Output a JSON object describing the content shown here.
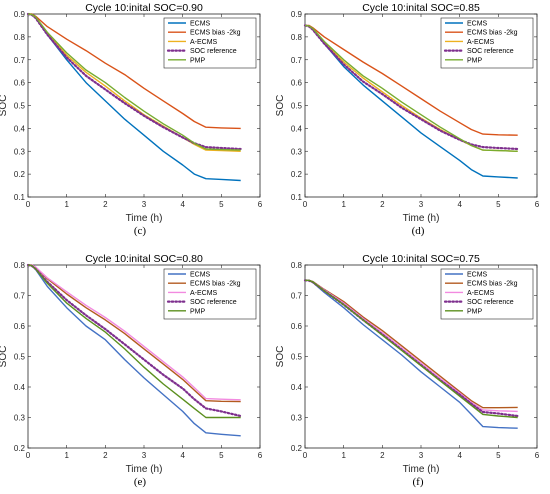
{
  "chart_data": [
    {
      "type": "line",
      "title": "Cycle 10:inital SOC=0.90",
      "xlabel": "Time (h)",
      "ylabel": "SOC",
      "panel_label": "(c)",
      "xlim": [
        0,
        6
      ],
      "ylim": [
        0.1,
        0.9
      ],
      "xticks": [
        0,
        1,
        2,
        3,
        4,
        5,
        6
      ],
      "yticks": [
        0.1,
        0.2,
        0.3,
        0.4,
        0.5,
        0.6,
        0.7,
        0.8,
        0.9
      ],
      "grid": false,
      "legend_position": "top-right",
      "series": [
        {
          "name": "ECMS",
          "color": "#0072BD",
          "dash": "solid",
          "x": [
            0,
            0.1,
            0.2,
            0.5,
            1,
            1.5,
            2,
            2.5,
            3,
            3.5,
            4,
            4.3,
            4.6,
            5,
            5.5
          ],
          "y": [
            0.9,
            0.898,
            0.885,
            0.81,
            0.7,
            0.6,
            0.52,
            0.44,
            0.37,
            0.3,
            0.24,
            0.2,
            0.18,
            0.177,
            0.172
          ]
        },
        {
          "name": "ECMS bias -2kg",
          "color": "#D95319",
          "dash": "solid",
          "x": [
            0,
            0.1,
            0.2,
            0.5,
            1,
            1.5,
            2,
            2.5,
            3,
            3.5,
            4,
            4.3,
            4.6,
            5,
            5.5
          ],
          "y": [
            0.9,
            0.9,
            0.89,
            0.845,
            0.79,
            0.74,
            0.685,
            0.635,
            0.575,
            0.52,
            0.465,
            0.43,
            0.405,
            0.402,
            0.4
          ]
        },
        {
          "name": "A-ECMS",
          "color": "#EDB120",
          "dash": "solid",
          "x": [
            0,
            0.1,
            0.2,
            0.5,
            1,
            1.5,
            2,
            2.5,
            3,
            3.5,
            4,
            4.3,
            4.6,
            5,
            5.5
          ],
          "y": [
            0.9,
            0.898,
            0.885,
            0.815,
            0.72,
            0.645,
            0.585,
            0.52,
            0.46,
            0.41,
            0.36,
            0.33,
            0.305,
            0.303,
            0.3
          ]
        },
        {
          "name": "SOC reference",
          "color": "#7E2F8E",
          "dash": "dotted",
          "x": [
            0,
            0.1,
            0.2,
            0.5,
            1,
            1.5,
            2,
            2.5,
            3,
            3.5,
            4,
            4.3,
            4.6,
            5,
            5.5
          ],
          "y": [
            0.9,
            0.896,
            0.882,
            0.81,
            0.71,
            0.63,
            0.57,
            0.51,
            0.455,
            0.405,
            0.36,
            0.335,
            0.318,
            0.314,
            0.31
          ]
        },
        {
          "name": "PMP",
          "color": "#77AC30",
          "dash": "solid",
          "x": [
            0,
            0.1,
            0.2,
            0.5,
            1,
            1.5,
            2,
            2.5,
            3,
            3.5,
            4,
            4.3,
            4.6,
            5,
            5.5
          ],
          "y": [
            0.9,
            0.898,
            0.887,
            0.82,
            0.73,
            0.655,
            0.6,
            0.535,
            0.475,
            0.42,
            0.37,
            0.335,
            0.31,
            0.307,
            0.305
          ]
        }
      ]
    },
    {
      "type": "line",
      "title": "Cycle 10:inital SOC=0.85",
      "xlabel": "Time (h)",
      "ylabel": "SOC",
      "panel_label": "(d)",
      "xlim": [
        0,
        6
      ],
      "ylim": [
        0.1,
        0.9
      ],
      "xticks": [
        0,
        1,
        2,
        3,
        4,
        5,
        6
      ],
      "yticks": [
        0.1,
        0.2,
        0.3,
        0.4,
        0.5,
        0.6,
        0.7,
        0.8,
        0.9
      ],
      "grid": false,
      "legend_position": "top-right",
      "series": [
        {
          "name": "ECMS",
          "color": "#0072BD",
          "dash": "solid",
          "x": [
            0,
            0.1,
            0.2,
            0.5,
            1,
            1.5,
            2,
            2.5,
            3,
            3.5,
            4,
            4.3,
            4.6,
            5,
            5.5
          ],
          "y": [
            0.85,
            0.848,
            0.835,
            0.77,
            0.67,
            0.59,
            0.52,
            0.45,
            0.38,
            0.32,
            0.26,
            0.22,
            0.192,
            0.188,
            0.183
          ]
        },
        {
          "name": "ECMS bias -2kg",
          "color": "#D95319",
          "dash": "solid",
          "x": [
            0,
            0.1,
            0.2,
            0.5,
            1,
            1.5,
            2,
            2.5,
            3,
            3.5,
            4,
            4.3,
            4.6,
            5,
            5.5
          ],
          "y": [
            0.85,
            0.85,
            0.84,
            0.8,
            0.745,
            0.69,
            0.64,
            0.585,
            0.53,
            0.475,
            0.425,
            0.395,
            0.375,
            0.372,
            0.37
          ]
        },
        {
          "name": "A-ECMS",
          "color": "#EDB120",
          "dash": "solid",
          "x": [
            0,
            0.1,
            0.2,
            0.5,
            1,
            1.5,
            2,
            2.5,
            3,
            3.5,
            4,
            4.3,
            4.6,
            5,
            5.5
          ],
          "y": [
            0.85,
            0.848,
            0.835,
            0.775,
            0.69,
            0.62,
            0.56,
            0.5,
            0.445,
            0.395,
            0.35,
            0.325,
            0.305,
            0.303,
            0.3
          ]
        },
        {
          "name": "SOC reference",
          "color": "#7E2F8E",
          "dash": "dotted",
          "x": [
            0,
            0.1,
            0.2,
            0.5,
            1,
            1.5,
            2,
            2.5,
            3,
            3.5,
            4,
            4.3,
            4.6,
            5,
            5.5
          ],
          "y": [
            0.85,
            0.846,
            0.832,
            0.77,
            0.68,
            0.605,
            0.55,
            0.49,
            0.44,
            0.39,
            0.35,
            0.33,
            0.318,
            0.314,
            0.31
          ]
        },
        {
          "name": "PMP",
          "color": "#77AC30",
          "dash": "solid",
          "x": [
            0,
            0.1,
            0.2,
            0.5,
            1,
            1.5,
            2,
            2.5,
            3,
            3.5,
            4,
            4.3,
            4.6,
            5,
            5.5
          ],
          "y": [
            0.85,
            0.848,
            0.837,
            0.78,
            0.7,
            0.63,
            0.575,
            0.515,
            0.46,
            0.405,
            0.355,
            0.325,
            0.305,
            0.303,
            0.3
          ]
        }
      ]
    },
    {
      "type": "line",
      "title": "Cycle 10:inital SOC=0.80",
      "xlabel": "Time (h)",
      "ylabel": "SOC",
      "panel_label": "(e)",
      "xlim": [
        0,
        6
      ],
      "ylim": [
        0.2,
        0.8
      ],
      "xticks": [
        0,
        1,
        2,
        3,
        4,
        5,
        6
      ],
      "yticks": [
        0.2,
        0.3,
        0.4,
        0.5,
        0.6,
        0.7,
        0.8
      ],
      "grid": false,
      "legend_position": "top-right",
      "series": [
        {
          "name": "ECMS",
          "color": "#4472C4",
          "dash": "solid",
          "x": [
            0,
            0.1,
            0.2,
            0.5,
            1,
            1.5,
            2,
            2.5,
            3,
            3.5,
            4,
            4.3,
            4.6,
            5,
            5.5
          ],
          "y": [
            0.8,
            0.798,
            0.785,
            0.73,
            0.66,
            0.6,
            0.555,
            0.49,
            0.43,
            0.375,
            0.32,
            0.28,
            0.25,
            0.245,
            0.24
          ]
        },
        {
          "name": "ECMS bias -2kg",
          "color": "#B35A1F",
          "dash": "solid",
          "x": [
            0,
            0.1,
            0.2,
            0.5,
            1,
            1.5,
            2,
            2.5,
            3,
            3.5,
            4,
            4.3,
            4.6,
            5,
            5.5
          ],
          "y": [
            0.8,
            0.8,
            0.792,
            0.755,
            0.705,
            0.66,
            0.62,
            0.575,
            0.525,
            0.475,
            0.425,
            0.39,
            0.355,
            0.353,
            0.352
          ]
        },
        {
          "name": "A-ECMS",
          "color": "#F28AE0",
          "dash": "solid",
          "x": [
            0,
            0.1,
            0.2,
            0.5,
            1,
            1.5,
            2,
            2.5,
            3,
            3.5,
            4,
            4.3,
            4.6,
            5,
            5.5
          ],
          "y": [
            0.8,
            0.8,
            0.793,
            0.758,
            0.712,
            0.668,
            0.628,
            0.583,
            0.533,
            0.483,
            0.433,
            0.398,
            0.362,
            0.36,
            0.358
          ]
        },
        {
          "name": "SOC reference",
          "color": "#7E2F8E",
          "dash": "dotted",
          "x": [
            0,
            0.1,
            0.2,
            0.5,
            1,
            1.5,
            2,
            2.5,
            3,
            3.5,
            4,
            4.3,
            4.6,
            5,
            5.5
          ],
          "y": [
            0.8,
            0.797,
            0.787,
            0.745,
            0.685,
            0.635,
            0.59,
            0.54,
            0.49,
            0.44,
            0.395,
            0.36,
            0.33,
            0.32,
            0.305
          ]
        },
        {
          "name": "PMP",
          "color": "#5B8F1E",
          "dash": "solid",
          "x": [
            0,
            0.1,
            0.2,
            0.5,
            1,
            1.5,
            2,
            2.5,
            3,
            3.5,
            4,
            4.3,
            4.6,
            5,
            5.5
          ],
          "y": [
            0.8,
            0.798,
            0.787,
            0.74,
            0.675,
            0.625,
            0.58,
            0.525,
            0.465,
            0.41,
            0.36,
            0.33,
            0.3,
            0.3,
            0.3
          ]
        }
      ]
    },
    {
      "type": "line",
      "title": "Cycle 10:inital SOC=0.75",
      "xlabel": "Time (h)",
      "ylabel": "SOC",
      "panel_label": "(f)",
      "xlim": [
        0,
        6
      ],
      "ylim": [
        0.2,
        0.8
      ],
      "xticks": [
        0,
        1,
        2,
        3,
        4,
        5,
        6
      ],
      "yticks": [
        0.2,
        0.3,
        0.4,
        0.5,
        0.6,
        0.7,
        0.8
      ],
      "grid": false,
      "legend_position": "top-right",
      "series": [
        {
          "name": "ECMS",
          "color": "#4472C4",
          "dash": "solid",
          "x": [
            0,
            0.1,
            0.2,
            0.5,
            1,
            1.5,
            2,
            2.5,
            3,
            3.5,
            4,
            4.3,
            4.6,
            5,
            5.5
          ],
          "y": [
            0.75,
            0.75,
            0.743,
            0.71,
            0.66,
            0.605,
            0.555,
            0.505,
            0.45,
            0.4,
            0.35,
            0.31,
            0.27,
            0.267,
            0.265
          ]
        },
        {
          "name": "ECMS bias -2kg",
          "color": "#B35A1F",
          "dash": "solid",
          "x": [
            0,
            0.1,
            0.2,
            0.5,
            1,
            1.5,
            2,
            2.5,
            3,
            3.5,
            4,
            4.3,
            4.6,
            5,
            5.5
          ],
          "y": [
            0.75,
            0.75,
            0.746,
            0.72,
            0.68,
            0.63,
            0.585,
            0.535,
            0.485,
            0.435,
            0.385,
            0.355,
            0.332,
            0.332,
            0.333
          ]
        },
        {
          "name": "A-ECMS",
          "color": "#F28AE0",
          "dash": "solid",
          "x": [
            0,
            0.1,
            0.2,
            0.5,
            1,
            1.5,
            2,
            2.5,
            3,
            3.5,
            4,
            4.3,
            4.6,
            5,
            5.5
          ],
          "y": [
            0.75,
            0.75,
            0.745,
            0.718,
            0.675,
            0.625,
            0.578,
            0.528,
            0.478,
            0.428,
            0.38,
            0.35,
            0.325,
            0.322,
            0.32
          ]
        },
        {
          "name": "SOC reference",
          "color": "#7E2F8E",
          "dash": "dotted",
          "x": [
            0,
            0.1,
            0.2,
            0.5,
            1,
            1.5,
            2,
            2.5,
            3,
            3.5,
            4,
            4.3,
            4.6,
            5,
            5.5
          ],
          "y": [
            0.75,
            0.749,
            0.744,
            0.715,
            0.67,
            0.62,
            0.572,
            0.522,
            0.472,
            0.422,
            0.375,
            0.345,
            0.318,
            0.313,
            0.305
          ]
        },
        {
          "name": "PMP",
          "color": "#5B8F1E",
          "dash": "solid",
          "x": [
            0,
            0.1,
            0.2,
            0.5,
            1,
            1.5,
            2,
            2.5,
            3,
            3.5,
            4,
            4.3,
            4.6,
            5,
            5.5
          ],
          "y": [
            0.75,
            0.75,
            0.745,
            0.715,
            0.67,
            0.62,
            0.57,
            0.52,
            0.47,
            0.42,
            0.37,
            0.34,
            0.31,
            0.305,
            0.3
          ]
        }
      ]
    }
  ]
}
